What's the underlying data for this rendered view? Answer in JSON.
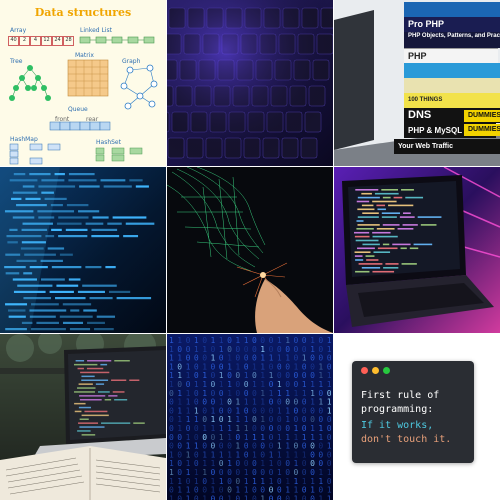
{
  "tiles": {
    "data_structures": {
      "title": "Data structures",
      "labels": {
        "array": "Array",
        "linked_list": "Linked List",
        "tree": "Tree",
        "matrix": "Matrix",
        "graph": "Graph",
        "queue": "Queue",
        "front": "front",
        "rear": "rear",
        "hashmap": "HashMap",
        "hashset": "HashSet"
      },
      "array_values": [
        "40",
        "2",
        "4",
        "12",
        "24",
        "28"
      ]
    },
    "books": {
      "titles": [
        "Pro PHP",
        "PHP Objects, Patterns, and Practice",
        "PHP",
        "100 THINGS",
        "DNS",
        "PHP & MySQL",
        "Your Web Traffic",
        "DUMMIES",
        "DUMMIES"
      ]
    },
    "rule_card": {
      "line1": "First rule of",
      "line2": "programming:",
      "line3": "If it works,",
      "line4": "don't touch it.",
      "colors": {
        "bg": "#2a2d33",
        "text": "#ffffff",
        "accent": "#4ec9e0",
        "warn": "#e8a07a"
      },
      "dots": [
        "#ff5f56",
        "#ffbd2e",
        "#27c93f"
      ]
    }
  }
}
